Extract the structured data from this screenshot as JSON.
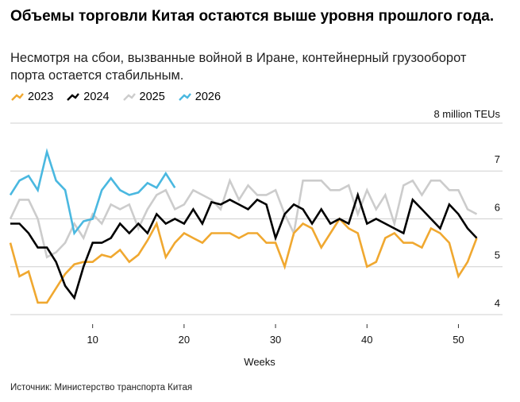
{
  "chart_data": {
    "type": "line",
    "title": "Объемы торговли Китая остаются выше уровня прошлого года.",
    "subtitle": "Несмотря на сбои, вызванные войной в Иране, контейнерный грузооборот порта остается стабильным.",
    "xlabel": "Weeks",
    "ylabel": "",
    "unit_label": "8 million TEUs",
    "xlim": [
      1,
      53
    ],
    "ylim": [
      3.8,
      8
    ],
    "x_ticks": [
      10,
      20,
      30,
      40,
      50
    ],
    "y_ticks": [
      4,
      5,
      6,
      7
    ],
    "grid": true,
    "legend_position": "top-left",
    "series": [
      {
        "name": "2023",
        "color": "#f0a830",
        "x": [
          1,
          2,
          3,
          4,
          5,
          6,
          7,
          8,
          9,
          10,
          11,
          12,
          13,
          14,
          15,
          16,
          17,
          18,
          19,
          20,
          21,
          22,
          23,
          24,
          25,
          26,
          27,
          28,
          29,
          30,
          31,
          32,
          33,
          34,
          35,
          36,
          37,
          38,
          39,
          40,
          41,
          42,
          43,
          44,
          45,
          46,
          47,
          48,
          49,
          50,
          51,
          52
        ],
        "values": [
          5.5,
          4.8,
          4.9,
          4.25,
          4.25,
          4.55,
          4.85,
          5.05,
          5.1,
          5.1,
          5.25,
          5.2,
          5.35,
          5.1,
          5.25,
          5.55,
          5.9,
          5.2,
          5.5,
          5.7,
          5.6,
          5.5,
          5.7,
          5.7,
          5.7,
          5.6,
          5.7,
          5.7,
          5.5,
          5.5,
          5.0,
          5.7,
          5.9,
          5.8,
          5.4,
          5.7,
          6.0,
          5.8,
          5.7,
          5.0,
          5.1,
          5.6,
          5.7,
          5.5,
          5.5,
          5.4,
          5.8,
          5.7,
          5.5,
          4.8,
          5.1,
          5.6
        ]
      },
      {
        "name": "2024",
        "color": "#000000",
        "x": [
          1,
          2,
          3,
          4,
          5,
          6,
          7,
          8,
          9,
          10,
          11,
          12,
          13,
          14,
          15,
          16,
          17,
          18,
          19,
          20,
          21,
          22,
          23,
          24,
          25,
          26,
          27,
          28,
          29,
          30,
          31,
          32,
          33,
          34,
          35,
          36,
          37,
          38,
          39,
          40,
          41,
          42,
          43,
          44,
          45,
          46,
          47,
          48,
          49,
          50,
          51,
          52
        ],
        "values": [
          5.9,
          5.9,
          5.7,
          5.4,
          5.4,
          5.1,
          4.6,
          4.35,
          5.0,
          5.5,
          5.5,
          5.6,
          5.9,
          5.7,
          5.9,
          5.7,
          6.1,
          5.9,
          6.0,
          5.9,
          6.2,
          5.9,
          6.35,
          6.3,
          6.4,
          6.3,
          6.2,
          6.4,
          6.3,
          5.6,
          6.1,
          6.3,
          6.2,
          5.9,
          6.2,
          5.9,
          6.0,
          5.9,
          6.5,
          5.9,
          6.0,
          5.9,
          5.8,
          5.7,
          6.4,
          6.2,
          6.0,
          5.8,
          6.3,
          6.1,
          5.8,
          5.6
        ]
      },
      {
        "name": "2025",
        "color": "#cccccc",
        "x": [
          1,
          2,
          3,
          4,
          5,
          6,
          7,
          8,
          9,
          10,
          11,
          12,
          13,
          14,
          15,
          16,
          17,
          18,
          19,
          20,
          21,
          22,
          23,
          24,
          25,
          26,
          27,
          28,
          29,
          30,
          31,
          32,
          33,
          34,
          35,
          36,
          37,
          38,
          39,
          40,
          41,
          42,
          43,
          44,
          45,
          46,
          47,
          48,
          49,
          50,
          51,
          52
        ],
        "values": [
          6.0,
          6.4,
          6.4,
          6.0,
          5.2,
          5.3,
          5.5,
          5.9,
          5.6,
          6.1,
          5.9,
          6.3,
          6.2,
          6.3,
          5.8,
          6.2,
          6.5,
          6.6,
          6.2,
          6.3,
          6.6,
          6.5,
          6.4,
          6.2,
          6.8,
          6.4,
          6.7,
          6.5,
          6.5,
          6.6,
          6.1,
          5.7,
          6.8,
          6.8,
          6.8,
          6.6,
          6.6,
          6.7,
          6.1,
          6.6,
          6.2,
          6.5,
          5.9,
          6.7,
          6.8,
          6.5,
          6.8,
          6.8,
          6.6,
          6.6,
          6.2,
          6.1
        ]
      },
      {
        "name": "2026",
        "color": "#4ab8e0",
        "x": [
          1,
          2,
          3,
          4,
          5,
          6,
          7,
          8,
          9,
          10,
          11,
          12,
          13,
          14,
          15,
          16,
          17,
          18,
          19
        ],
        "values": [
          6.5,
          6.8,
          6.9,
          6.6,
          7.4,
          6.8,
          6.6,
          5.7,
          5.95,
          6.0,
          6.6,
          6.85,
          6.6,
          6.5,
          6.55,
          6.75,
          6.65,
          6.95,
          6.65
        ]
      }
    ]
  },
  "source": "Источник: Министерство транспорта Китая"
}
